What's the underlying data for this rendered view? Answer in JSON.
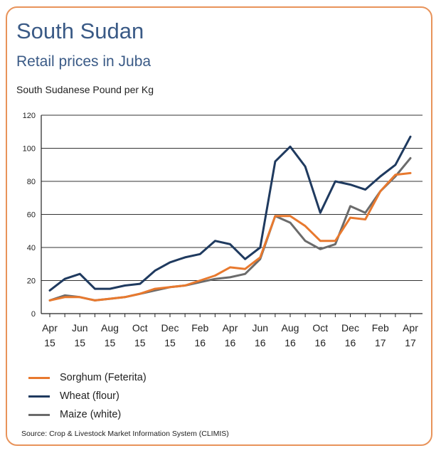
{
  "header": {
    "title": "South Sudan",
    "subtitle": "Retail prices in Juba",
    "unit_label": "South Sudanese Pound per Kg"
  },
  "source": "Source:  Crop & Livestock Market Information System (CLIMIS)",
  "colors": {
    "border": "#e8935a",
    "title": "#3a5a86",
    "sorghum": "#e8792e",
    "wheat": "#1f3a5f",
    "maize": "#6b6b6b"
  },
  "chart_data": {
    "type": "line",
    "ylim": [
      0,
      120
    ],
    "yticks": [
      0,
      20,
      40,
      60,
      80,
      100,
      120
    ],
    "x_tick_labels": [
      [
        "Apr",
        "15"
      ],
      [
        "Jun",
        "15"
      ],
      [
        "Aug",
        "15"
      ],
      [
        "Oct",
        "15"
      ],
      [
        "Dec",
        "15"
      ],
      [
        "Feb",
        "16"
      ],
      [
        "Apr",
        "16"
      ],
      [
        "Jun",
        "16"
      ],
      [
        "Aug",
        "16"
      ],
      [
        "Oct",
        "16"
      ],
      [
        "Dec",
        "16"
      ],
      [
        "Feb",
        "17"
      ],
      [
        "Apr",
        "17"
      ]
    ],
    "x": [
      "2015-04",
      "2015-05",
      "2015-06",
      "2015-07",
      "2015-08",
      "2015-09",
      "2015-10",
      "2015-11",
      "2015-12",
      "2016-01",
      "2016-02",
      "2016-03",
      "2016-04",
      "2016-05",
      "2016-06",
      "2016-07",
      "2016-08",
      "2016-09",
      "2016-10",
      "2016-11",
      "2016-12",
      "2017-01",
      "2017-02",
      "2017-03",
      "2017-04"
    ],
    "grid": true,
    "legend": "bottom-left",
    "series": [
      {
        "name": "Sorghum (Feterita)",
        "color_key": "sorghum",
        "values": [
          8,
          10,
          10,
          8,
          9,
          10,
          12,
          15,
          16,
          17,
          20,
          23,
          28,
          27,
          34,
          59,
          59,
          53,
          44,
          44,
          58,
          57,
          74,
          84,
          85
        ]
      },
      {
        "name": "Wheat (flour)",
        "color_key": "wheat",
        "values": [
          14,
          21,
          24,
          15,
          15,
          17,
          18,
          26,
          31,
          34,
          36,
          44,
          42,
          33,
          40,
          92,
          101,
          89,
          61,
          80,
          78,
          75,
          83,
          90,
          107
        ]
      },
      {
        "name": "Maize (white)",
        "color_key": "maize",
        "values": [
          8,
          11,
          10,
          8,
          9,
          10,
          12,
          14,
          16,
          17,
          19,
          21,
          22,
          24,
          33,
          59,
          55,
          44,
          39,
          42,
          65,
          61,
          74,
          83,
          94
        ]
      }
    ]
  }
}
